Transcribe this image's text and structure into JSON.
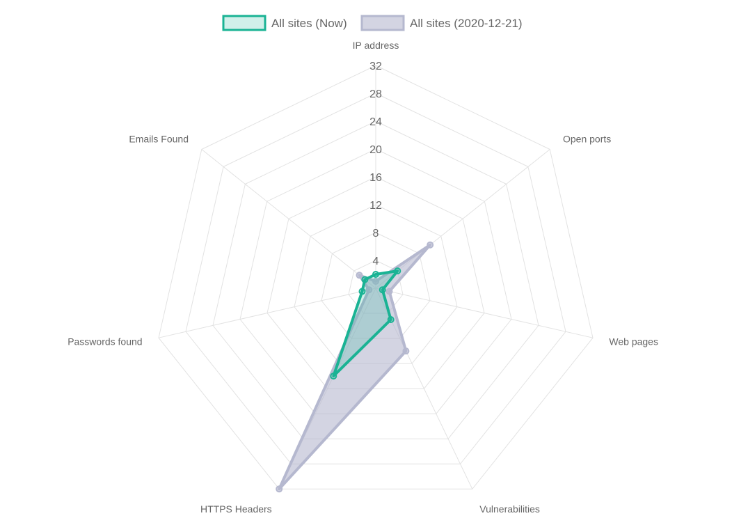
{
  "chart_data": {
    "type": "radar",
    "axes": [
      "IP address",
      "Open ports",
      "Web pages",
      "Vulnerabilities",
      "HTTPS Headers",
      "Passwords found",
      "Emails Found"
    ],
    "ticks": [
      "4",
      "8",
      "12",
      "16",
      "20",
      "24",
      "28",
      "32"
    ],
    "rmax": 32,
    "series": [
      {
        "name": "All sites (Now)",
        "values": [
          2,
          4,
          1,
          5,
          14,
          2,
          2
        ],
        "color": "#1ab394",
        "fill": "rgba(26,179,148,0.2)"
      },
      {
        "name": "All sites (2020-12-21)",
        "values": [
          1,
          10,
          2,
          10,
          32,
          1,
          3
        ],
        "color": "#b5b8cf",
        "fill": "rgba(181,184,207,0.6)"
      }
    ]
  }
}
